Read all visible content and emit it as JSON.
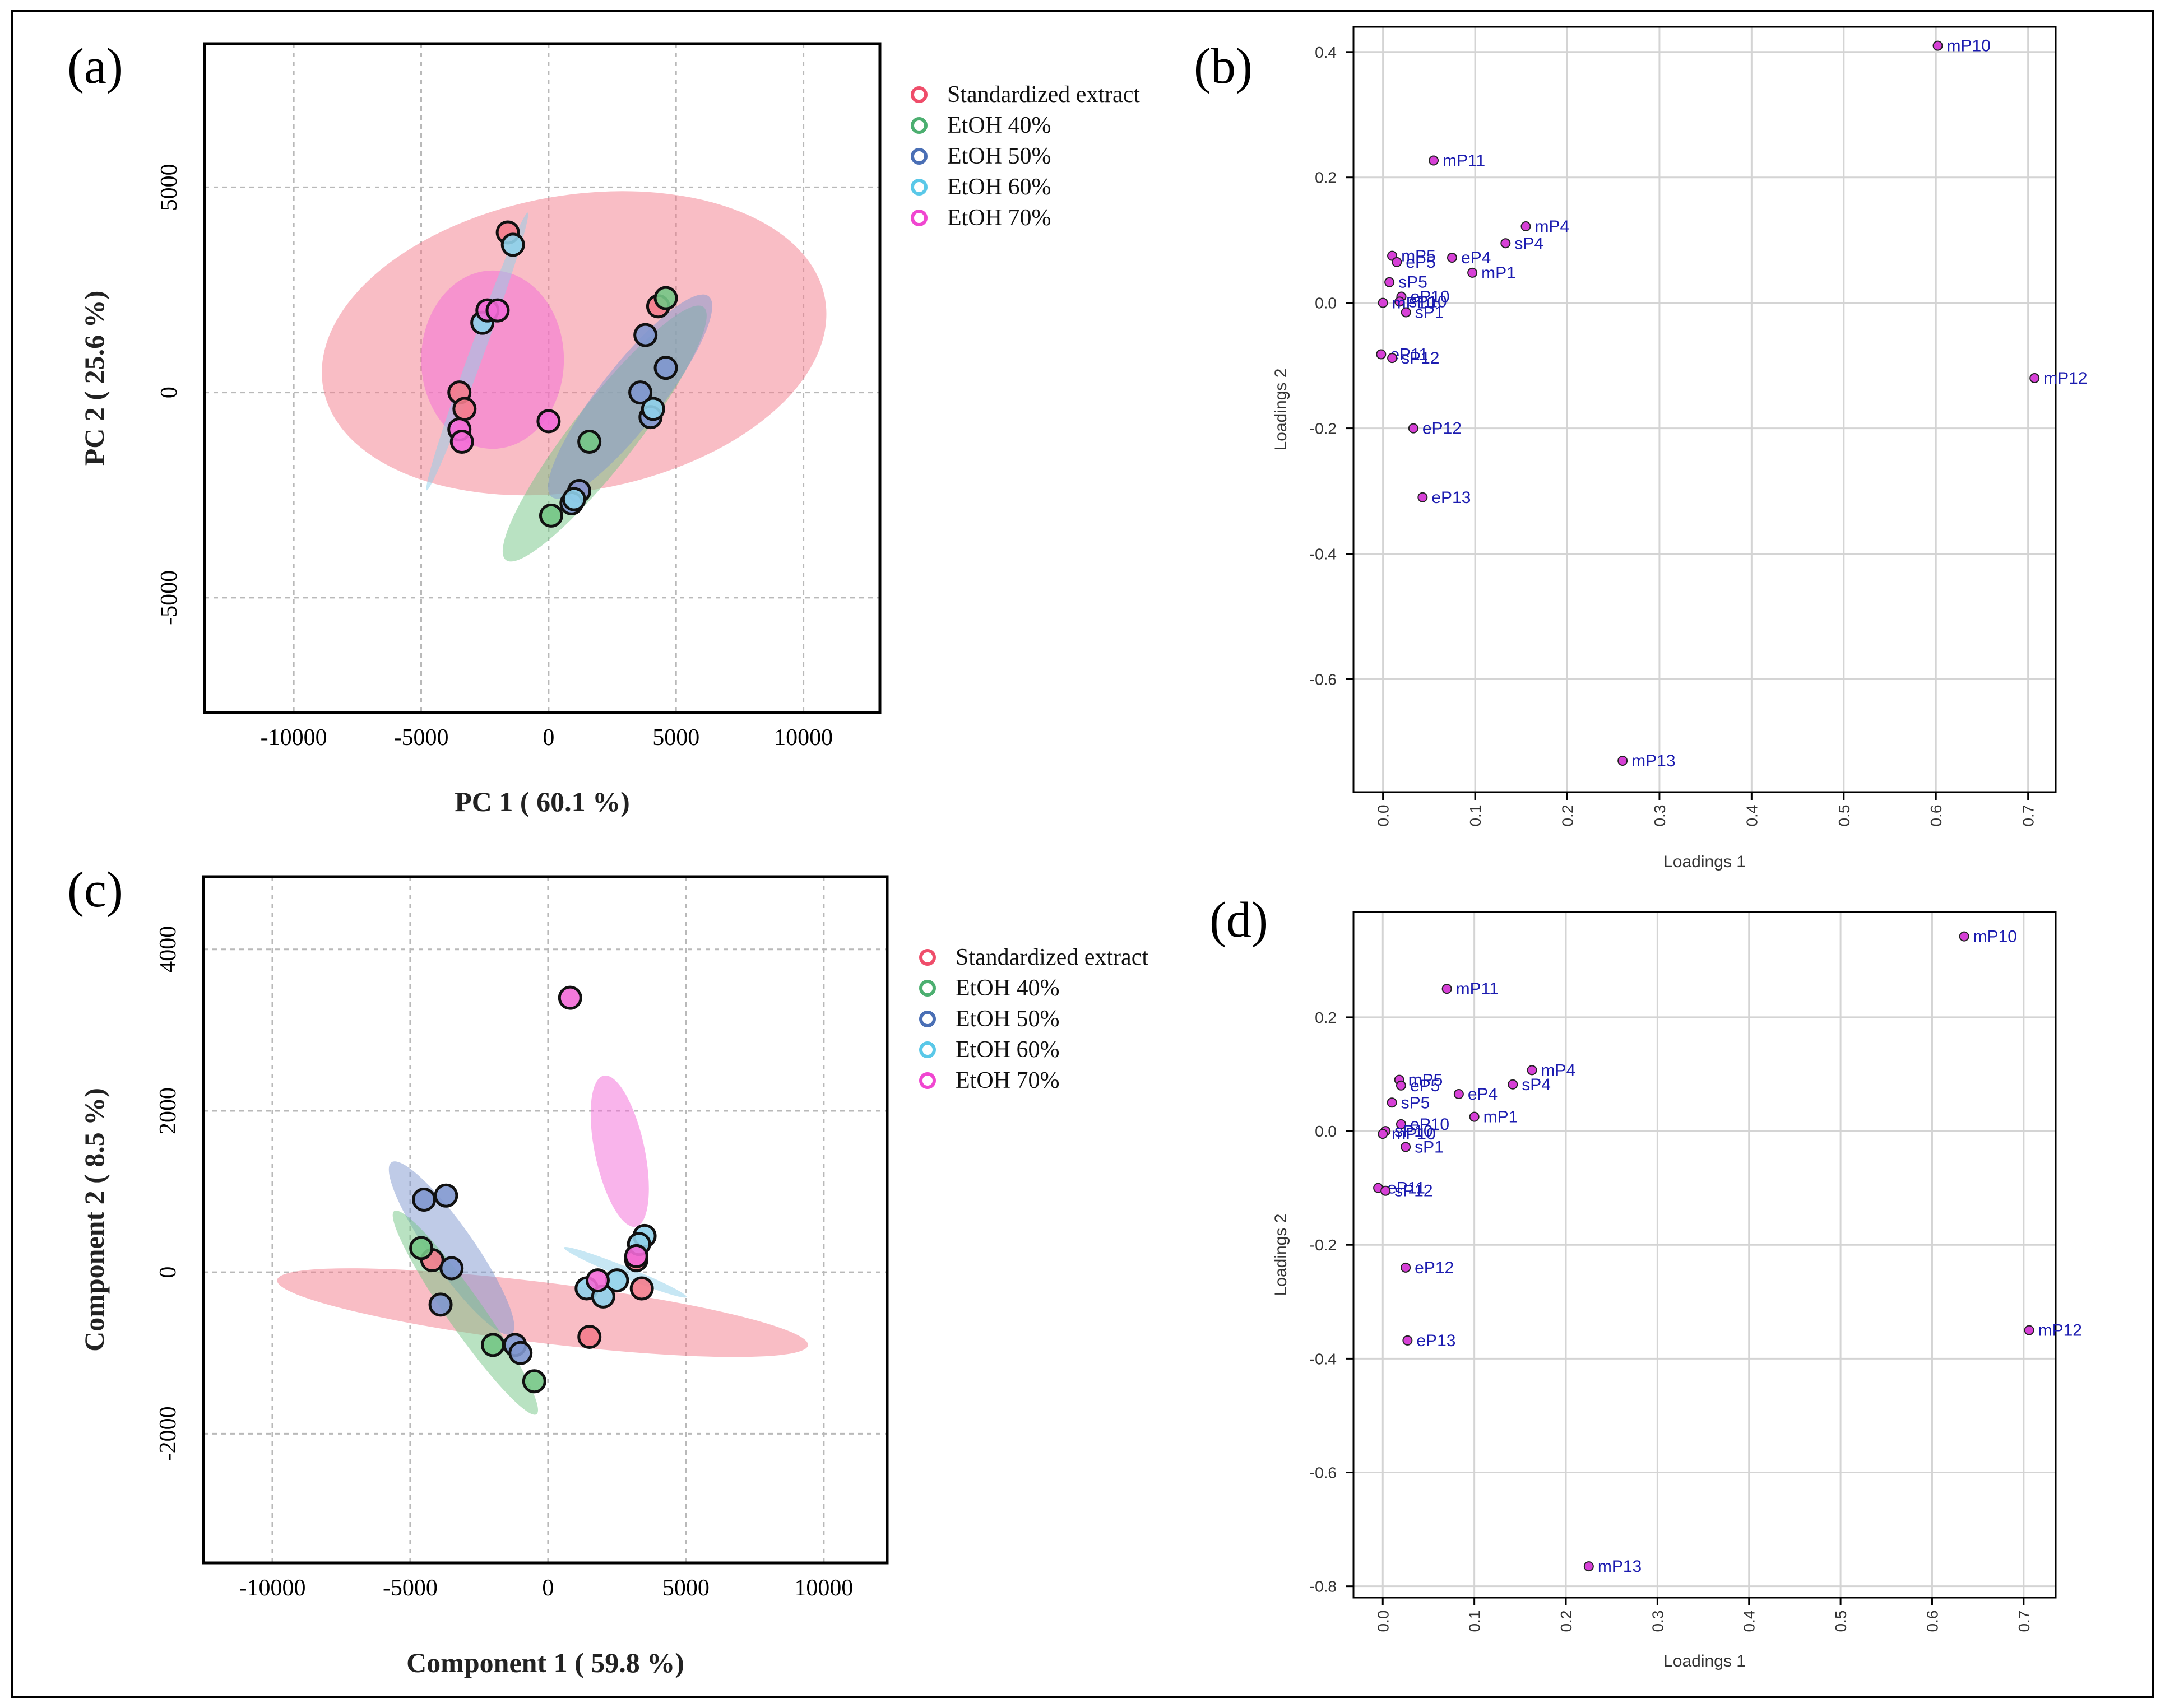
{
  "figure": {
    "colors": {
      "Standardized extract": "#ef4d6a",
      "EtOH 40%": "#4caf70",
      "EtOH 50%": "#4a6fb5",
      "EtOH 60%": "#5ac8e8",
      "EtOH 70%": "#f046d0"
    },
    "fills": {
      "Standardized extract": "#f47c8c",
      "EtOH 40%": "#74c685",
      "EtOH 50%": "#7f97cf",
      "EtOH 60%": "#8fd0ea",
      "EtOH 70%": "#f36ad7"
    },
    "loading_color": "#d640d6",
    "loading_label_color": "#1c1cb0"
  },
  "chart_data": [
    {
      "panel": "(a)",
      "type": "scatter",
      "xlabel": "PC 1 ( 60.1 %)",
      "ylabel": "PC 2 ( 25.6 %)",
      "xlim": [
        -13500,
        13000
      ],
      "ylim": [
        -7800,
        8500
      ],
      "xticks": [
        -10000,
        -5000,
        0,
        5000,
        10000
      ],
      "xtick_labels": [
        "-10000",
        "-5000",
        "0",
        "5000",
        "10000"
      ],
      "yticks": [
        -5000,
        0,
        5000
      ],
      "ytick_labels": [
        "-5000",
        "0",
        "5000"
      ],
      "legend": [
        "Standardized extract",
        "EtOH 40%",
        "EtOH 50%",
        "EtOH 60%",
        "EtOH 70%"
      ],
      "ellipses": [
        {
          "group": "Standardized extract",
          "cx": 1000,
          "cy": 1200,
          "rx": 10000,
          "ry": 5800,
          "angle": 10
        },
        {
          "group": "EtOH 70%",
          "cx": -2200,
          "cy": 800,
          "rx": 2800,
          "ry": 3500,
          "angle": 0
        },
        {
          "group": "EtOH 40%",
          "cx": 2200,
          "cy": -1000,
          "rx": 6300,
          "ry": 1250,
          "angle": 52
        },
        {
          "group": "EtOH 50%",
          "cx": 3200,
          "cy": -100,
          "rx": 5000,
          "ry": 1200,
          "angle": 52
        },
        {
          "group": "EtOH 60%",
          "cx": -2800,
          "cy": 1000,
          "rx": 5800,
          "ry": 280,
          "angle": 70
        }
      ],
      "series": [
        {
          "name": "Standardized extract",
          "x": [
            -1600,
            -3500,
            -3300,
            4300,
            1200
          ],
          "y": [
            3900,
            0,
            -400,
            2100,
            -2400
          ]
        },
        {
          "name": "EtOH 40%",
          "x": [
            1600,
            100,
            4600
          ],
          "y": [
            -1200,
            -3000,
            2300
          ]
        },
        {
          "name": "EtOH 50%",
          "x": [
            3800,
            4600,
            3600,
            4000,
            1200,
            900
          ],
          "y": [
            1400,
            600,
            0,
            -600,
            -2400,
            -2700
          ]
        },
        {
          "name": "EtOH 60%",
          "x": [
            -1400,
            -2600,
            4100,
            1000
          ],
          "y": [
            3600,
            1700,
            -400,
            -2600
          ]
        },
        {
          "name": "EtOH 70%",
          "x": [
            -2400,
            -2000,
            -3500,
            -3400,
            0
          ],
          "y": [
            2000,
            2000,
            -900,
            -1200,
            -700
          ]
        }
      ]
    },
    {
      "panel": "(b)",
      "type": "scatter",
      "xlabel": "Loadings 1",
      "ylabel": "Loadings 2",
      "xlim": [
        -0.032,
        0.73
      ],
      "ylim": [
        -0.78,
        0.44
      ],
      "xticks": [
        0.0,
        0.1,
        0.2,
        0.3,
        0.4,
        0.5,
        0.6,
        0.7
      ],
      "xtick_labels": [
        "0.0",
        "0.1",
        "0.2",
        "0.3",
        "0.4",
        "0.5",
        "0.6",
        "0.7"
      ],
      "yticks": [
        -0.6,
        -0.4,
        -0.2,
        0.0,
        0.2,
        0.4
      ],
      "ytick_labels": [
        "-0.6",
        "-0.4",
        "-0.2",
        "0.0",
        "0.2",
        "0.4"
      ],
      "points": [
        {
          "label": "mP10",
          "x": 0.602,
          "y": 0.41
        },
        {
          "label": "mP11",
          "x": 0.055,
          "y": 0.227
        },
        {
          "label": "mP4",
          "x": 0.155,
          "y": 0.122
        },
        {
          "label": "sP4",
          "x": 0.133,
          "y": 0.095
        },
        {
          "label": "mP5",
          "x": 0.01,
          "y": 0.075
        },
        {
          "label": "eP5",
          "x": 0.015,
          "y": 0.065
        },
        {
          "label": "eP4",
          "x": 0.075,
          "y": 0.072
        },
        {
          "label": "mP1",
          "x": 0.097,
          "y": 0.048
        },
        {
          "label": "sP5",
          "x": 0.007,
          "y": 0.033
        },
        {
          "label": "eP10",
          "x": 0.02,
          "y": 0.01
        },
        {
          "label": "sP10",
          "x": 0.018,
          "y": 0.002
        },
        {
          "label": "mP10",
          "x": 0.0,
          "y": 0.0
        },
        {
          "label": "sP1",
          "x": 0.025,
          "y": -0.015
        },
        {
          "label": "eP11",
          "x": -0.002,
          "y": -0.082
        },
        {
          "label": "sP12",
          "x": 0.01,
          "y": -0.088
        },
        {
          "label": "eP12",
          "x": 0.033,
          "y": -0.2
        },
        {
          "label": "eP13",
          "x": 0.043,
          "y": -0.31
        },
        {
          "label": "mP12",
          "x": 0.707,
          "y": -0.12
        },
        {
          "label": "mP13",
          "x": 0.26,
          "y": -0.73
        }
      ]
    },
    {
      "panel": "(c)",
      "type": "scatter",
      "xlabel": "Component 1 ( 59.8 %)",
      "ylabel": "Component 2 ( 8.5 %)",
      "xlim": [
        -12500,
        12300
      ],
      "ylim": [
        -3600,
        4900
      ],
      "xticks": [
        -10000,
        -5000,
        0,
        5000,
        10000
      ],
      "xtick_labels": [
        "-10000",
        "-5000",
        "0",
        "5000",
        "10000"
      ],
      "yticks": [
        -2000,
        0,
        2000,
        4000
      ],
      "ytick_labels": [
        "-2000",
        "0",
        "2000",
        "4000"
      ],
      "legend": [
        "Standardized extract",
        "EtOH 40%",
        "EtOH 50%",
        "EtOH 60%",
        "EtOH 70%"
      ],
      "ellipses": [
        {
          "group": "Standardized extract",
          "cx": -200,
          "cy": -500,
          "rx": 9700,
          "ry": 1100,
          "angle": -7
        },
        {
          "group": "EtOH 70%",
          "cx": 2600,
          "cy": 1500,
          "rx": 2800,
          "ry": 900,
          "angle": -78
        },
        {
          "group": "EtOH 50%",
          "cx": -3500,
          "cy": 300,
          "rx": 3800,
          "ry": 800,
          "angle": -55
        },
        {
          "group": "EtOH 40%",
          "cx": -3000,
          "cy": -500,
          "rx": 4500,
          "ry": 650,
          "angle": -55
        },
        {
          "group": "EtOH 60%",
          "cx": 2800,
          "cy": 0,
          "rx": 2400,
          "ry": 200,
          "angle": -22
        }
      ],
      "series": [
        {
          "name": "Standardized extract",
          "x": [
            -4200,
            3200,
            3400,
            1500
          ],
          "y": [
            150,
            150,
            -200,
            -800
          ]
        },
        {
          "name": "EtOH 40%",
          "x": [
            -4600,
            -2000,
            -500
          ],
          "y": [
            300,
            -900,
            -1350
          ]
        },
        {
          "name": "EtOH 50%",
          "x": [
            -4500,
            -3700,
            -3500,
            -3900,
            -1200,
            -1000
          ],
          "y": [
            900,
            950,
            50,
            -400,
            -900,
            -1000
          ]
        },
        {
          "name": "EtOH 60%",
          "x": [
            3500,
            1400,
            2000,
            2500,
            3300
          ],
          "y": [
            450,
            -200,
            -300,
            -100,
            350
          ]
        },
        {
          "name": "EtOH 70%",
          "x": [
            800,
            1800,
            3200
          ],
          "y": [
            3400,
            -100,
            200
          ]
        }
      ]
    },
    {
      "panel": "(d)",
      "type": "scatter",
      "xlabel": "Loadings 1",
      "ylabel": "Loadings 2",
      "xlim": [
        -0.032,
        0.735
      ],
      "ylim": [
        -0.82,
        0.385
      ],
      "xticks": [
        0.0,
        0.1,
        0.2,
        0.3,
        0.4,
        0.5,
        0.6,
        0.7
      ],
      "xtick_labels": [
        "0.0",
        "0.1",
        "0.2",
        "0.3",
        "0.4",
        "0.5",
        "0.6",
        "0.7"
      ],
      "yticks": [
        -0.8,
        -0.6,
        -0.4,
        -0.2,
        0.0,
        0.2
      ],
      "ytick_labels": [
        "-0.8",
        "-0.6",
        "-0.4",
        "-0.2",
        "0.0",
        "0.2"
      ],
      "points": [
        {
          "label": "mP10",
          "x": 0.635,
          "y": 0.342
        },
        {
          "label": "mP11",
          "x": 0.07,
          "y": 0.25
        },
        {
          "label": "mP4",
          "x": 0.163,
          "y": 0.107
        },
        {
          "label": "sP4",
          "x": 0.142,
          "y": 0.082
        },
        {
          "label": "mP5",
          "x": 0.018,
          "y": 0.09
        },
        {
          "label": "eP5",
          "x": 0.02,
          "y": 0.08
        },
        {
          "label": "eP4",
          "x": 0.083,
          "y": 0.065
        },
        {
          "label": "mP1",
          "x": 0.1,
          "y": 0.025
        },
        {
          "label": "sP5",
          "x": 0.01,
          "y": 0.05
        },
        {
          "label": "eP10",
          "x": 0.02,
          "y": 0.012
        },
        {
          "label": "sP10",
          "x": 0.003,
          "y": 0.0
        },
        {
          "label": "mP10",
          "x": 0.0,
          "y": -0.005
        },
        {
          "label": "sP1",
          "x": 0.025,
          "y": -0.028
        },
        {
          "label": "eP11",
          "x": -0.005,
          "y": -0.1
        },
        {
          "label": "sP12",
          "x": 0.003,
          "y": -0.105
        },
        {
          "label": "eP12",
          "x": 0.025,
          "y": -0.24
        },
        {
          "label": "eP13",
          "x": 0.027,
          "y": -0.368
        },
        {
          "label": "mP12",
          "x": 0.706,
          "y": -0.35
        },
        {
          "label": "mP13",
          "x": 0.225,
          "y": -0.765
        }
      ]
    }
  ]
}
